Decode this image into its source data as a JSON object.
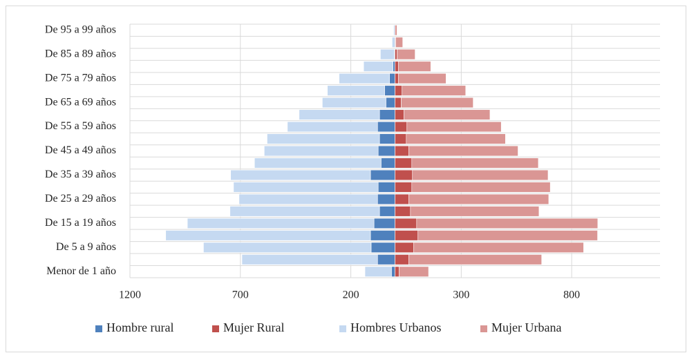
{
  "chart_data": {
    "type": "stacked_barh",
    "categories": [
      "Menor de 1 año",
      null,
      "De 5 a 9 años",
      null,
      "De 15 a 19 años",
      null,
      "De 25 a 29 años",
      null,
      "De 35 a 39 años",
      null,
      "De 45 a 49 años",
      null,
      "De 55 a 59 años",
      null,
      "De 65 a 69 años",
      null,
      "De 75 a 79 años",
      null,
      "De 85 a 89 años",
      null,
      "De 95 a 99 años"
    ],
    "series": [
      {
        "name": "Hombre rural",
        "color": "#4f81bd",
        "values": [
          -16,
          -79,
          -108,
          -111,
          -95,
          -70,
          -79,
          -76,
          -111,
          -63,
          -76,
          -70,
          -79,
          -70,
          -41,
          -47,
          -25,
          -9,
          -3,
          0,
          0
        ]
      },
      {
        "name": "Mujer Rural",
        "color": "#c0504d",
        "values": [
          19,
          63,
          85,
          104,
          98,
          70,
          63,
          76,
          79,
          76,
          63,
          51,
          54,
          41,
          28,
          32,
          16,
          16,
          9,
          3,
          0
        ]
      },
      {
        "name": "Hombres Urbanos",
        "color": "#c5d9f1",
        "values": [
          -120,
          -614,
          -759,
          -927,
          -845,
          -677,
          -627,
          -655,
          -633,
          -573,
          -516,
          -509,
          -408,
          -364,
          -288,
          -259,
          -228,
          -133,
          -63,
          -13,
          -6
        ]
      },
      {
        "name": "Mujer Urbana",
        "color": "#da9694",
        "values": [
          133,
          601,
          769,
          813,
          820,
          582,
          633,
          627,
          614,
          573,
          494,
          449,
          427,
          389,
          326,
          288,
          215,
          146,
          82,
          32,
          9
        ]
      }
    ],
    "xlim": [
      -1200,
      1200
    ],
    "xticks": [
      {
        "value": -1200,
        "label": "1200"
      },
      {
        "value": -700,
        "label": "700"
      },
      {
        "value": -200,
        "label": "200"
      },
      300,
      800
    ],
    "grid": true,
    "legend": "bottom"
  }
}
